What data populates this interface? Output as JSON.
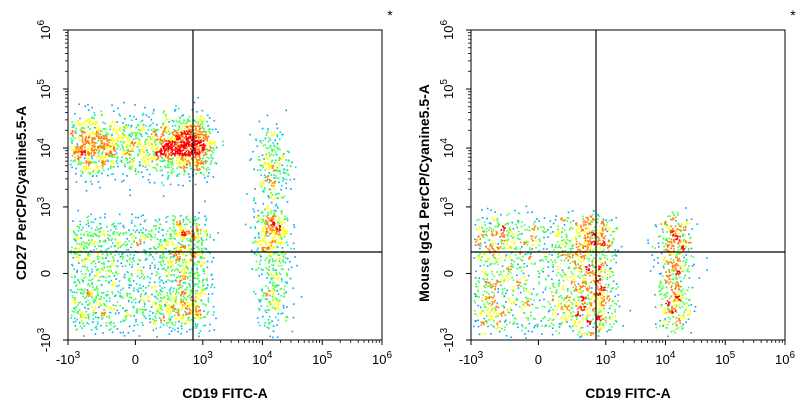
{
  "chart_data": [
    {
      "type": "scatter",
      "subtype": "flow-cytometry-density-plot",
      "xlabel": "CD19 FITC-A",
      "ylabel": "CD27 PerCP/Cyanine5.5-A",
      "x_scale": "biexponential",
      "y_scale": "biexponential",
      "xlim": [
        -1000,
        1000000
      ],
      "ylim": [
        -1000,
        1000000
      ],
      "x_tick_labels": [
        {
          "value": -1000,
          "base": "-10",
          "exp": "3"
        },
        {
          "value": 0,
          "base": "0",
          "exp": ""
        },
        {
          "value": 1000,
          "base": "10",
          "exp": "3"
        },
        {
          "value": 10000,
          "base": "10",
          "exp": "4"
        },
        {
          "value": 100000,
          "base": "10",
          "exp": "5"
        },
        {
          "value": 1000000,
          "base": "10",
          "exp": "6"
        }
      ],
      "y_tick_labels": [
        {
          "value": -1000,
          "base": "-10",
          "exp": "3"
        },
        {
          "value": 0,
          "base": "0",
          "exp": ""
        },
        {
          "value": 1000,
          "base": "10",
          "exp": "3"
        },
        {
          "value": 10000,
          "base": "10",
          "exp": "4"
        },
        {
          "value": 100000,
          "base": "10",
          "exp": "5"
        },
        {
          "value": 1000000,
          "base": "10",
          "exp": "6"
        }
      ],
      "quadrant_gate": {
        "x": 2300,
        "y": 1500
      },
      "populations": [
        {
          "x_center": 150,
          "y_center": 11000,
          "x_spread": 550,
          "y_spread": 0.25,
          "y_log": true,
          "density": "high"
        },
        {
          "x_center": 100,
          "y_center": 0,
          "x_spread": 500,
          "y_spread": 300,
          "y_log": false,
          "density": "high"
        },
        {
          "x_center": 14000,
          "y_center": 5000,
          "x_spread": 0.15,
          "y_spread": 0.35,
          "x_log": true,
          "y_log": true,
          "density": "low"
        },
        {
          "x_center": 14000,
          "y_center": 200,
          "x_spread": 0.15,
          "y_spread": 350,
          "x_log": true,
          "density": "medium"
        }
      ],
      "corner_mark": "*"
    },
    {
      "type": "scatter",
      "subtype": "flow-cytometry-density-plot",
      "xlabel": "CD19 FITC-A",
      "ylabel": "Mouse IgG1 PerCP/Cyanine5.5-A",
      "x_scale": "biexponential",
      "y_scale": "biexponential",
      "xlim": [
        -1000,
        1000000
      ],
      "ylim": [
        -1000,
        1000000
      ],
      "x_tick_labels": [
        {
          "value": -1000,
          "base": "-10",
          "exp": "3"
        },
        {
          "value": 0,
          "base": "0",
          "exp": ""
        },
        {
          "value": 1000,
          "base": "10",
          "exp": "3"
        },
        {
          "value": 10000,
          "base": "10",
          "exp": "4"
        },
        {
          "value": 100000,
          "base": "10",
          "exp": "5"
        },
        {
          "value": 1000000,
          "base": "10",
          "exp": "6"
        }
      ],
      "y_tick_labels": [
        {
          "value": -1000,
          "base": "-10",
          "exp": "3"
        },
        {
          "value": 0,
          "base": "0",
          "exp": ""
        },
        {
          "value": 1000,
          "base": "10",
          "exp": "3"
        },
        {
          "value": 10000,
          "base": "10",
          "exp": "4"
        },
        {
          "value": 100000,
          "base": "10",
          "exp": "5"
        },
        {
          "value": 1000000,
          "base": "10",
          "exp": "6"
        }
      ],
      "quadrant_gate": {
        "x": 2300,
        "y": 1500
      },
      "populations": [
        {
          "x_center": 150,
          "y_center": 0,
          "x_spread": 550,
          "y_spread": 320,
          "y_log": false,
          "density": "high"
        },
        {
          "x_center": 14000,
          "y_center": 0,
          "x_spread": 0.15,
          "y_spread": 300,
          "x_log": true,
          "density": "medium"
        }
      ],
      "corner_mark": "*"
    }
  ],
  "colors": {
    "density_scale": [
      "#0000ff",
      "#00a0ff",
      "#00e0c0",
      "#40ff40",
      "#ffff00",
      "#ff8000",
      "#ff0000"
    ],
    "gate_line": "#000000",
    "axis": "#000000"
  }
}
